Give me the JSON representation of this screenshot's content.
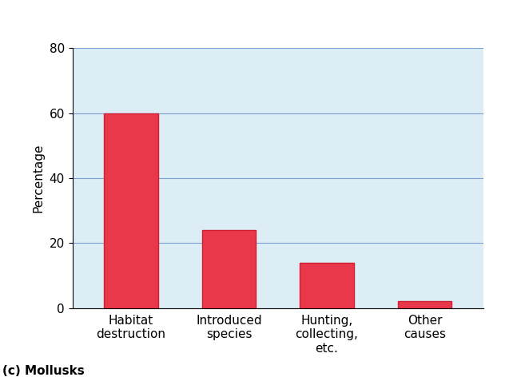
{
  "chart_data": {
    "type": "bar",
    "title": "(c) Mollusks",
    "y_label": "Percentage",
    "categories": [
      "Habitat destruction",
      "Introduced species",
      "Hunting, collecting, etc.",
      "Other causes"
    ],
    "values": [
      60,
      24,
      14,
      2
    ],
    "color": "#e8384a",
    "ylim": [
      0,
      80
    ],
    "yticks": [
      0,
      20,
      40,
      60,
      80
    ],
    "grid": true
  }
}
